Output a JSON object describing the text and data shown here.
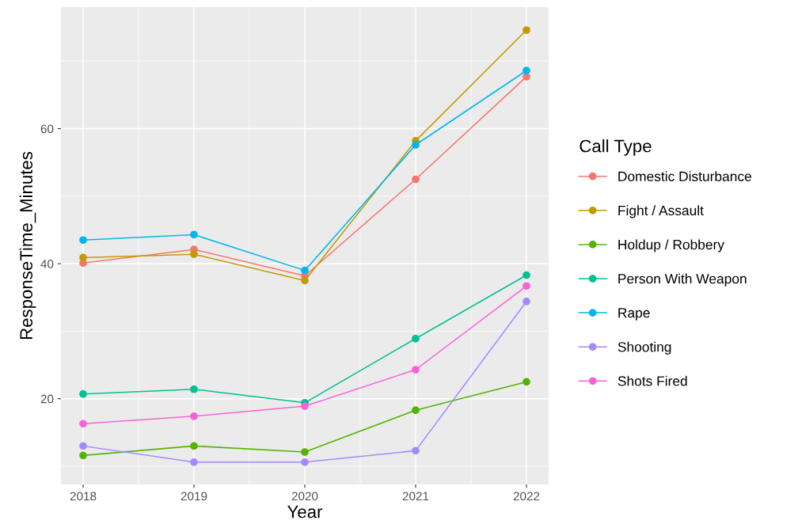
{
  "chart_data": {
    "type": "line",
    "xlabel": "Year",
    "ylabel": "ResponseTime_Minutes",
    "legend_title": "Call Type",
    "x": [
      2018,
      2019,
      2020,
      2021,
      2022
    ],
    "xlim": [
      2017.8,
      2022.2
    ],
    "xticks": [
      2018,
      2019,
      2020,
      2021,
      2022
    ],
    "ylim": [
      7.3,
      78
    ],
    "yticks": [
      20,
      40,
      60
    ],
    "grid": true,
    "legend": "right",
    "marker": "circle",
    "line_style": "solid",
    "series": [
      {
        "name": "Domestic Disturbance",
        "color": "#f8766d",
        "values": [
          40.1,
          42.1,
          38.2,
          52.5,
          67.7
        ]
      },
      {
        "name": "Fight / Assault",
        "color": "#c49a00",
        "values": [
          40.9,
          41.4,
          37.5,
          58.2,
          74.6
        ]
      },
      {
        "name": "Holdup / Robbery",
        "color": "#53b400",
        "values": [
          11.6,
          13.0,
          12.1,
          18.3,
          22.5
        ]
      },
      {
        "name": "Person With Weapon",
        "color": "#00c094",
        "values": [
          20.7,
          21.4,
          19.4,
          28.9,
          38.3
        ]
      },
      {
        "name": "Rape",
        "color": "#00b6eb",
        "values": [
          43.5,
          44.3,
          39.0,
          57.6,
          68.6
        ]
      },
      {
        "name": "Shooting",
        "color": "#a58aff",
        "values": [
          13.0,
          10.6,
          10.6,
          12.3,
          34.4
        ]
      },
      {
        "name": "Shots Fired",
        "color": "#fb61d7",
        "values": [
          16.3,
          17.4,
          18.9,
          24.3,
          36.7
        ]
      }
    ]
  }
}
